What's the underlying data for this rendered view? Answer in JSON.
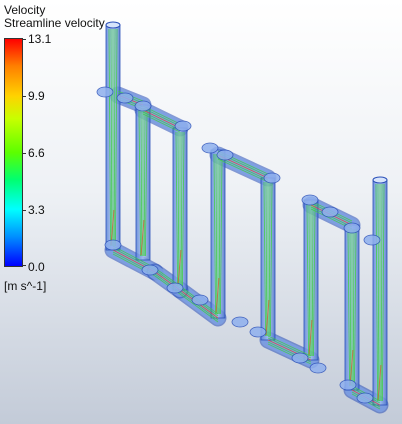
{
  "legend": {
    "title": "Velocity",
    "subtitle": "Streamline velocity",
    "ticks": [
      "13.1",
      "9.9",
      "6.6",
      "3.3",
      "0.0"
    ],
    "units": "[m s^-1]",
    "colors": [
      "#ff0000",
      "#ffd200",
      "#5cff00",
      "#00ffff",
      "#0000ff"
    ]
  },
  "geometry_colors": {
    "pipe_fill": "#7ea2e6",
    "pipe_outline": "#2a4fb8",
    "streamline_main": "#3fcf44",
    "streamline_hot": "#e0532c"
  }
}
